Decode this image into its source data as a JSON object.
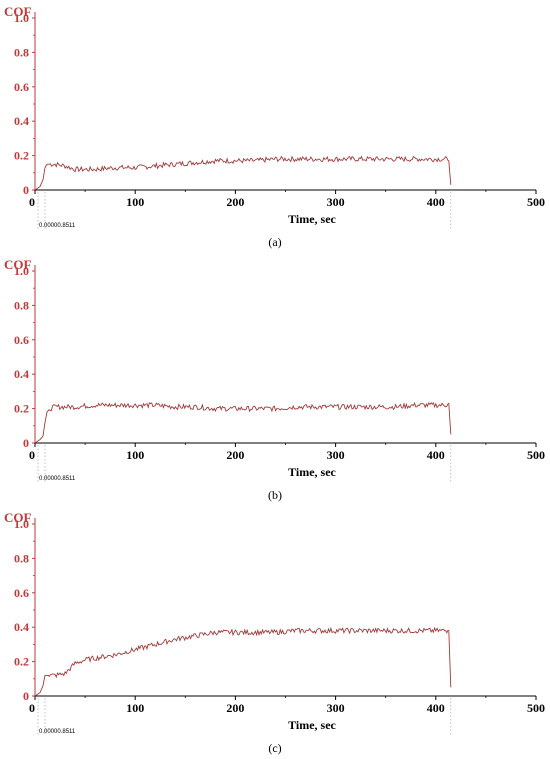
{
  "colors": {
    "series": "#a23a3a",
    "y_axis": "#c0393b",
    "x_axis": "#000000"
  },
  "chart_data": [
    {
      "type": "line",
      "caption": "(a)",
      "ylabel": "COF",
      "xlabel": "Time, sec",
      "marker_label": "0.00000.8511",
      "xlim": [
        0,
        500
      ],
      "ylim": [
        0,
        1.0
      ],
      "xticks": [
        "0",
        "100",
        "200",
        "300",
        "400",
        "500"
      ],
      "yticks": [
        "0",
        "0.2",
        "0.4",
        "0.6",
        "0.8",
        "1.0"
      ],
      "grid": false,
      "series": [
        {
          "x": [
            0,
            5,
            8,
            10,
            12,
            20,
            30,
            40,
            50,
            60,
            80,
            100,
            120,
            140,
            160,
            180,
            200,
            220,
            240,
            260,
            280,
            300,
            320,
            340,
            360,
            380,
            400,
            410,
            413,
            415
          ],
          "values": [
            0.0,
            0.02,
            0.06,
            0.13,
            0.15,
            0.15,
            0.14,
            0.12,
            0.12,
            0.12,
            0.13,
            0.13,
            0.14,
            0.15,
            0.16,
            0.17,
            0.17,
            0.17,
            0.18,
            0.18,
            0.18,
            0.18,
            0.18,
            0.18,
            0.18,
            0.18,
            0.18,
            0.18,
            0.17,
            0.03
          ]
        }
      ]
    },
    {
      "type": "line",
      "caption": "(b)",
      "ylabel": "COF",
      "xlabel": "Time, sec",
      "marker_label": "0.00000.8511",
      "xlim": [
        0,
        500
      ],
      "ylim": [
        0,
        1.0
      ],
      "xticks": [
        "0",
        "100",
        "200",
        "300",
        "400",
        "500"
      ],
      "yticks": [
        "0",
        "0.2",
        "0.4",
        "0.6",
        "0.8",
        "1.0"
      ],
      "grid": false,
      "series": [
        {
          "x": [
            0,
            5,
            8,
            10,
            12,
            15,
            20,
            40,
            60,
            80,
            100,
            120,
            140,
            160,
            180,
            200,
            220,
            240,
            260,
            280,
            300,
            320,
            340,
            360,
            380,
            400,
            410,
            413,
            415
          ],
          "values": [
            0.0,
            0.02,
            0.04,
            0.12,
            0.18,
            0.2,
            0.21,
            0.21,
            0.22,
            0.22,
            0.22,
            0.22,
            0.21,
            0.21,
            0.2,
            0.2,
            0.2,
            0.2,
            0.21,
            0.21,
            0.21,
            0.21,
            0.21,
            0.21,
            0.22,
            0.22,
            0.22,
            0.23,
            0.05
          ]
        }
      ]
    },
    {
      "type": "line",
      "caption": "(c)",
      "ylabel": "COF",
      "xlabel": "Time, sec",
      "marker_label": "0.00000.8511",
      "xlim": [
        0,
        500
      ],
      "ylim": [
        0,
        1.0
      ],
      "xticks": [
        "0",
        "100",
        "200",
        "300",
        "400",
        "500"
      ],
      "yticks": [
        "0",
        "0.2",
        "0.4",
        "0.6",
        "0.8",
        "1.0"
      ],
      "grid": false,
      "series": [
        {
          "x": [
            0,
            5,
            8,
            10,
            12,
            20,
            30,
            35,
            40,
            50,
            60,
            80,
            100,
            120,
            140,
            160,
            180,
            200,
            220,
            240,
            260,
            280,
            300,
            320,
            340,
            360,
            380,
            400,
            410,
            413,
            415
          ],
          "values": [
            0.0,
            0.02,
            0.06,
            0.12,
            0.12,
            0.12,
            0.13,
            0.16,
            0.19,
            0.21,
            0.22,
            0.24,
            0.27,
            0.3,
            0.33,
            0.35,
            0.37,
            0.37,
            0.37,
            0.37,
            0.38,
            0.38,
            0.38,
            0.38,
            0.38,
            0.38,
            0.38,
            0.38,
            0.38,
            0.38,
            0.05
          ]
        }
      ]
    }
  ]
}
